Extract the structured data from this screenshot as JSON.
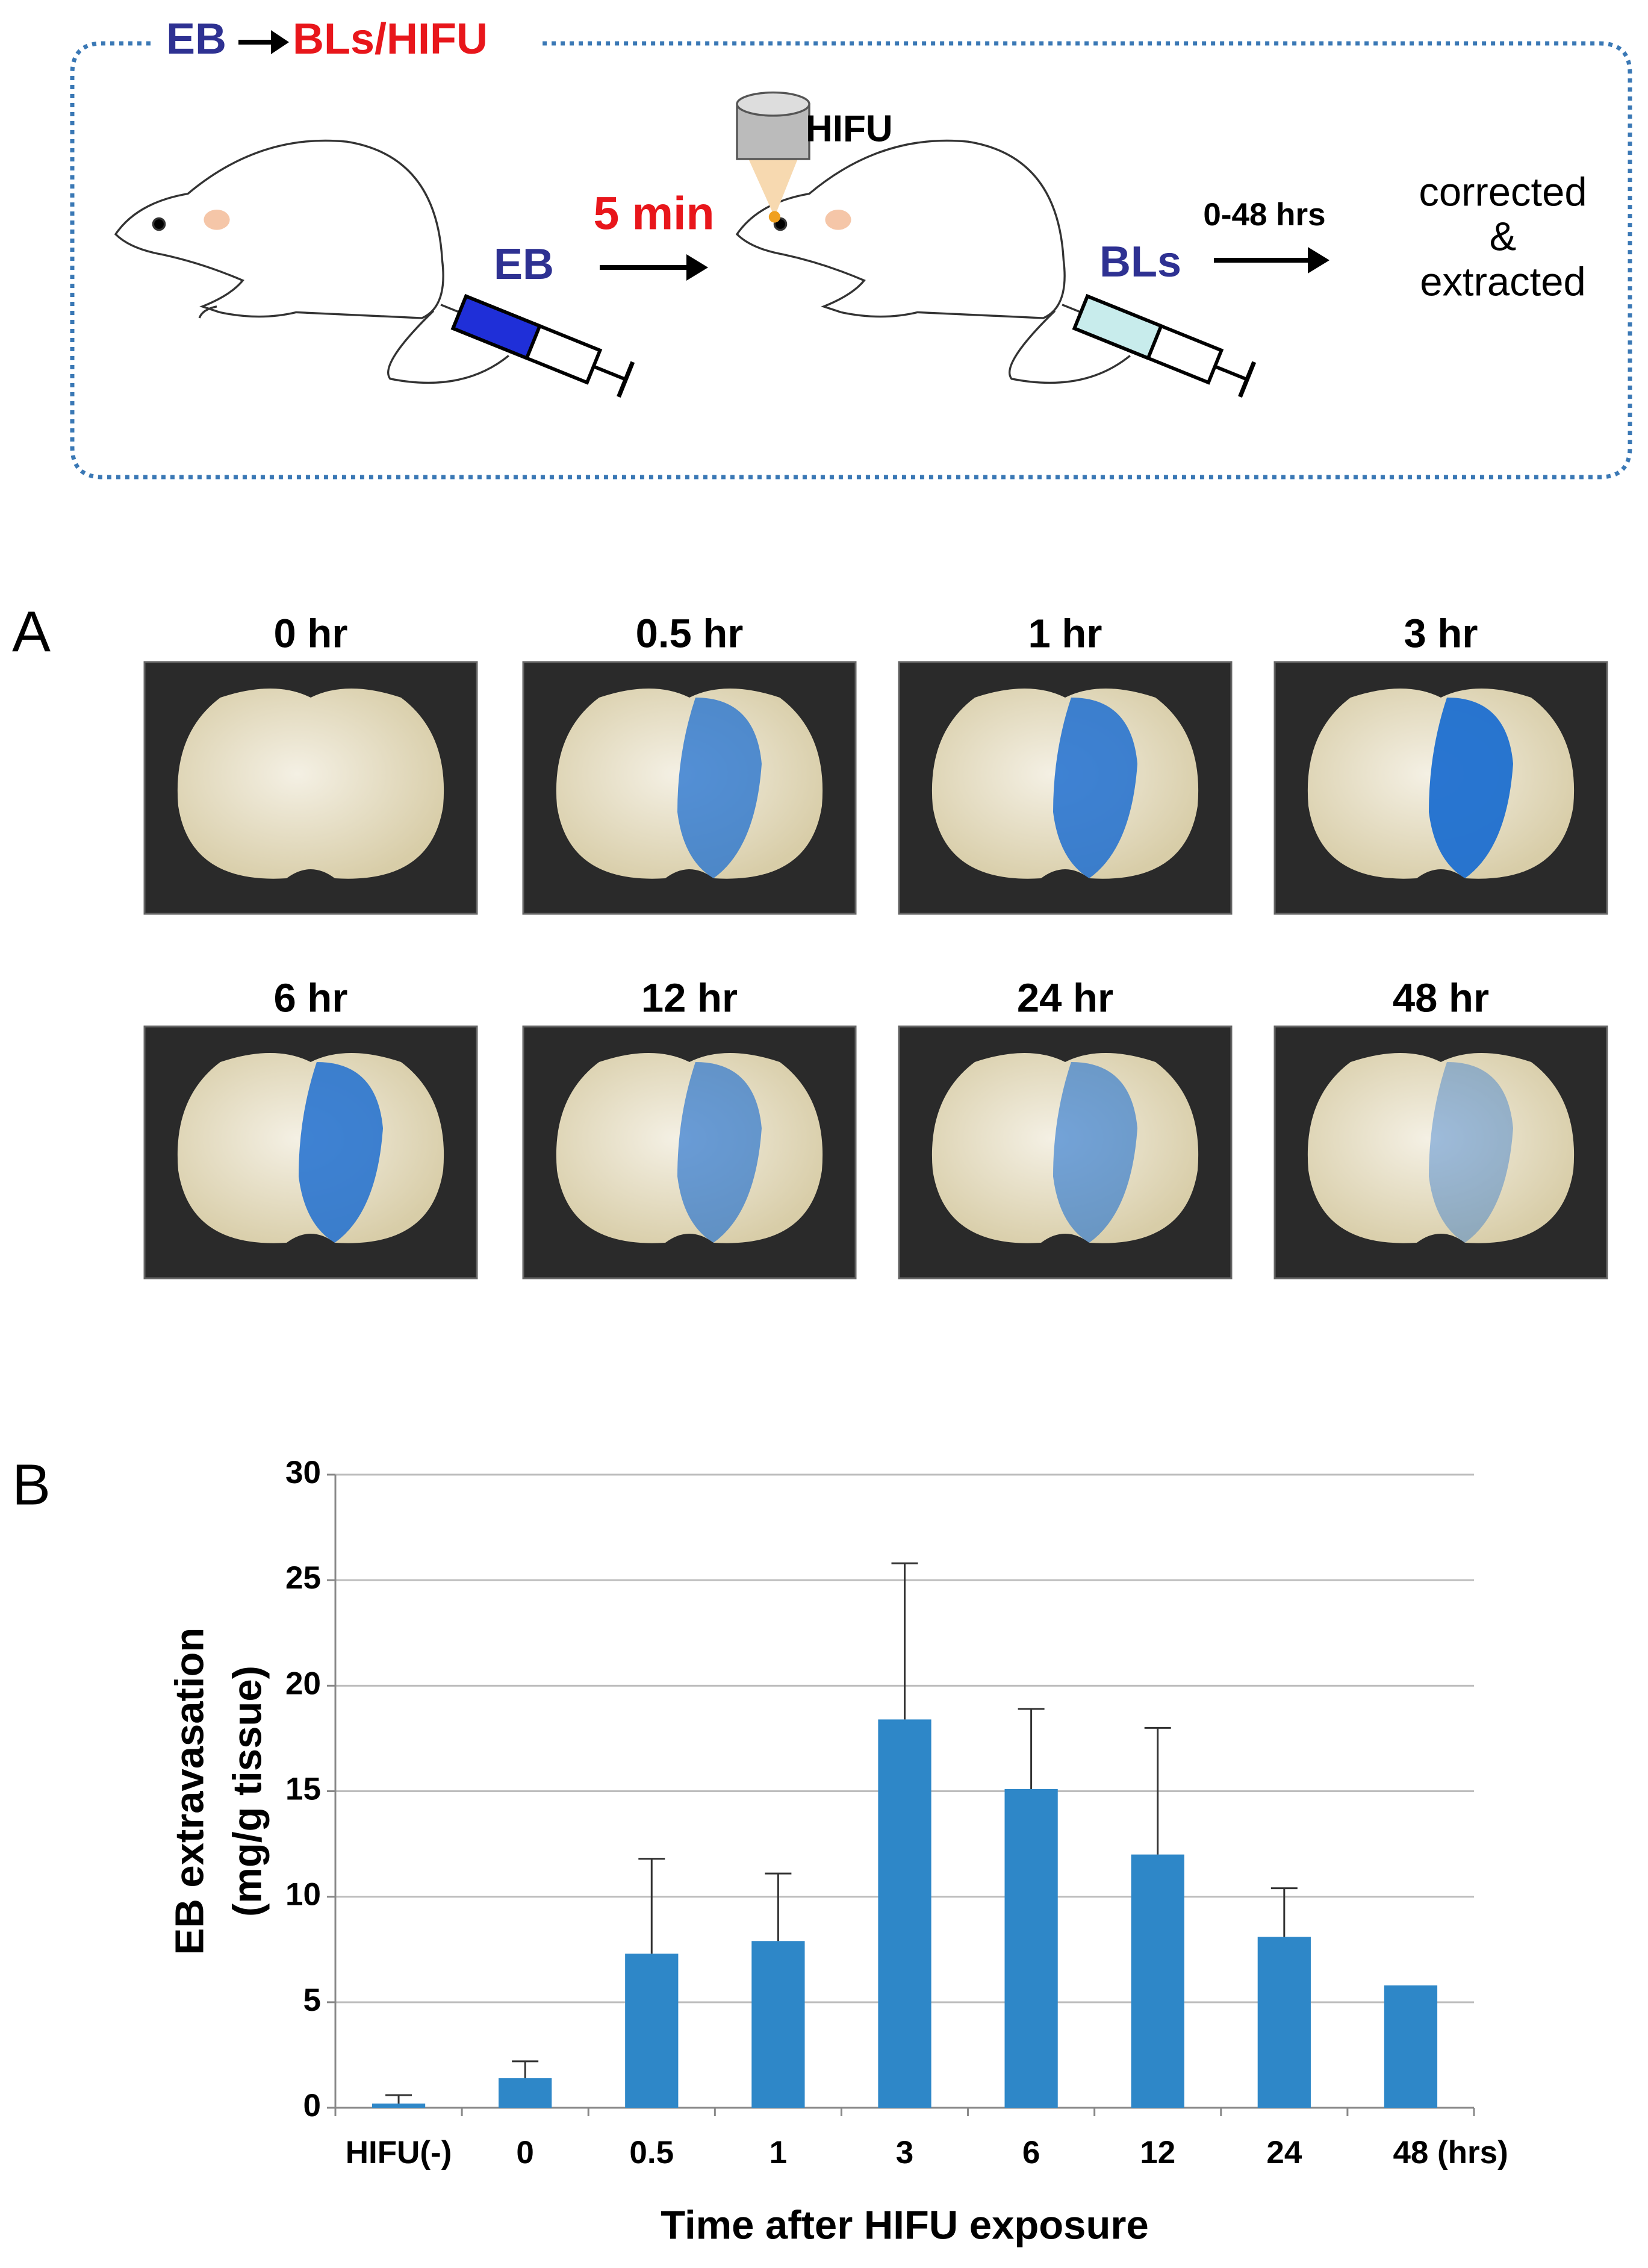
{
  "schematic": {
    "title": [
      "EB",
      "BLs/HIFU"
    ],
    "hifu_label": "HIFU",
    "delay_label": "5 min",
    "injection_1": "EB",
    "injection_2": "BLs",
    "time_label": "0-48 hrs",
    "outcome": [
      "corrected",
      "&",
      "extracted"
    ]
  },
  "panel_a": {
    "label": "A",
    "photos": [
      "0 hr",
      "0.5 hr",
      "1 hr",
      "3 hr",
      "6 hr",
      "12 hr",
      "24 hr",
      "48 hr"
    ]
  },
  "panel_b": {
    "label": "B"
  },
  "chart_data": {
    "type": "bar",
    "categories": [
      "HIFU(-)",
      "0",
      "0.5",
      "1",
      "3",
      "6",
      "12",
      "24",
      "48"
    ],
    "values": [
      0.2,
      1.4,
      7.3,
      7.9,
      18.4,
      15.1,
      12.0,
      8.1,
      5.8
    ],
    "errors": [
      0.4,
      0.8,
      4.5,
      3.2,
      7.4,
      3.8,
      6.0,
      2.3,
      null
    ],
    "color": "#2e87c8",
    "ylim": [
      0,
      30
    ],
    "yticks": [
      0,
      5,
      10,
      15,
      20,
      25,
      30
    ],
    "grid": true,
    "ylabel": [
      "EB extravasation",
      "(mg/g tissue)"
    ],
    "xlabel": "Time after HIFU exposure",
    "x_unit": "(hrs)"
  }
}
